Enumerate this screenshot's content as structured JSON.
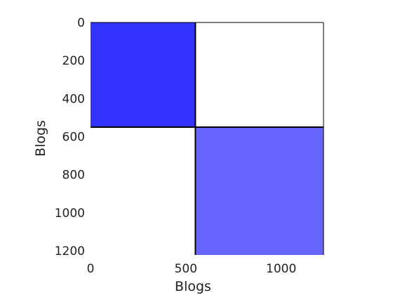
{
  "chart_data": {
    "type": "heatmap",
    "xlabel": "Blogs",
    "ylabel": "Blogs",
    "xlim": [
      0,
      1222
    ],
    "ylim": [
      0,
      1222
    ],
    "y_inverted": true,
    "grid": false,
    "legend": "none",
    "x_ticks": [
      0,
      500,
      1000
    ],
    "y_ticks": [
      0,
      200,
      400,
      600,
      800,
      1000,
      1200
    ],
    "block_boundaries": [
      0,
      550,
      1222
    ],
    "blocks": [
      {
        "row": 0,
        "col": 0,
        "density": 0.8,
        "color": "#3333ff"
      },
      {
        "row": 0,
        "col": 1,
        "density": 0.0,
        "color": "#ffffff"
      },
      {
        "row": 1,
        "col": 0,
        "density": 0.0,
        "color": "#ffffff"
      },
      {
        "row": 1,
        "col": 1,
        "density": 0.6,
        "color": "#6666ff"
      }
    ]
  }
}
